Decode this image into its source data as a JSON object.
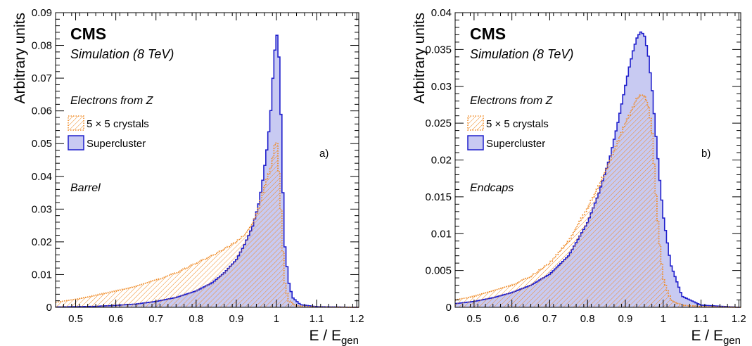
{
  "chart_data": [
    {
      "type": "area",
      "cms_label": "CMS",
      "subtitle": "Simulation (8 TeV)",
      "annotation": "Electrons from Z",
      "region": "Barrel",
      "panel_tag": "a)",
      "xlabel": "E / E",
      "xlabel_sub": "gen",
      "ylabel": "Arbitrary units",
      "xlim": [
        0.45,
        1.205
      ],
      "ylim": [
        0,
        0.09
      ],
      "xticks": [
        "0.5",
        "0.6",
        "0.7",
        "0.8",
        "0.9",
        "1",
        "1.1",
        "1.2"
      ],
      "yticks": [
        "0",
        "0.01",
        "0.02",
        "0.03",
        "0.04",
        "0.05",
        "0.06",
        "0.07",
        "0.08",
        "0.09"
      ],
      "legend_placement": "top-left",
      "series": [
        {
          "name": "5 × 5 crystals",
          "style": "hatched-dotted",
          "color": "#f08a24",
          "x": [
            0.45,
            0.5,
            0.55,
            0.6,
            0.65,
            0.7,
            0.75,
            0.8,
            0.84,
            0.87,
            0.9,
            0.92,
            0.94,
            0.955,
            0.965,
            0.975,
            0.985,
            0.99,
            0.995,
            1.0,
            1.005,
            1.01,
            1.015,
            1.02,
            1.03,
            1.05,
            1.1,
            1.2
          ],
          "values": [
            0.0015,
            0.0025,
            0.0037,
            0.005,
            0.0065,
            0.0083,
            0.0105,
            0.0135,
            0.0158,
            0.0178,
            0.02,
            0.022,
            0.0255,
            0.03,
            0.0345,
            0.039,
            0.042,
            0.045,
            0.049,
            0.052,
            0.044,
            0.033,
            0.02,
            0.008,
            0.002,
            0.0005,
            0.0001,
            0.0
          ]
        },
        {
          "name": "Supercluster",
          "style": "filled",
          "color": "#1f1fcc",
          "fill": "#c8caf2",
          "x": [
            0.45,
            0.5,
            0.55,
            0.6,
            0.65,
            0.7,
            0.75,
            0.8,
            0.84,
            0.87,
            0.9,
            0.92,
            0.94,
            0.955,
            0.965,
            0.975,
            0.985,
            0.99,
            0.995,
            1.0,
            1.005,
            1.01,
            1.015,
            1.02,
            1.03,
            1.04,
            1.06,
            1.1,
            1.2
          ],
          "values": [
            0.0001,
            0.0002,
            0.0003,
            0.0006,
            0.001,
            0.0018,
            0.003,
            0.005,
            0.0075,
            0.0105,
            0.0145,
            0.019,
            0.0245,
            0.031,
            0.038,
            0.047,
            0.058,
            0.068,
            0.077,
            0.084,
            0.08,
            0.065,
            0.04,
            0.02,
            0.008,
            0.003,
            0.0008,
            0.0002,
            0.0
          ]
        }
      ]
    },
    {
      "type": "area",
      "cms_label": "CMS",
      "subtitle": "Simulation (8 TeV)",
      "annotation": "Electrons from Z",
      "region": "Endcaps",
      "panel_tag": "b)",
      "xlabel": "E / E",
      "xlabel_sub": "gen",
      "ylabel": "Arbitrary units",
      "xlim": [
        0.45,
        1.205
      ],
      "ylim": [
        0,
        0.04
      ],
      "xticks": [
        "0.5",
        "0.6",
        "0.7",
        "0.8",
        "0.9",
        "1",
        "1.1",
        "1.2"
      ],
      "yticks": [
        "0",
        "0.005",
        "0.01",
        "0.015",
        "0.02",
        "0.025",
        "0.03",
        "0.035",
        "0.04"
      ],
      "legend_placement": "top-left",
      "series": [
        {
          "name": "5 × 5 crystals",
          "style": "hatched-dotted",
          "color": "#f08a24",
          "x": [
            0.45,
            0.5,
            0.55,
            0.6,
            0.65,
            0.7,
            0.75,
            0.8,
            0.83,
            0.86,
            0.88,
            0.9,
            0.91,
            0.92,
            0.93,
            0.94,
            0.95,
            0.96,
            0.97,
            0.98,
            0.99,
            1.0,
            1.02,
            1.05,
            1.1,
            1.2
          ],
          "values": [
            0.001,
            0.0015,
            0.0022,
            0.003,
            0.0042,
            0.006,
            0.009,
            0.0135,
            0.0165,
            0.02,
            0.0225,
            0.025,
            0.026,
            0.0272,
            0.0283,
            0.0288,
            0.0288,
            0.0275,
            0.0245,
            0.016,
            0.009,
            0.004,
            0.001,
            0.0003,
            0.0001,
            0.0
          ]
        },
        {
          "name": "Supercluster",
          "style": "filled",
          "color": "#1f1fcc",
          "fill": "#c8caf2",
          "x": [
            0.45,
            0.5,
            0.55,
            0.6,
            0.65,
            0.7,
            0.75,
            0.8,
            0.83,
            0.86,
            0.88,
            0.9,
            0.91,
            0.92,
            0.93,
            0.94,
            0.95,
            0.96,
            0.97,
            0.98,
            0.99,
            1.0,
            1.02,
            1.05,
            1.1,
            1.2
          ],
          "values": [
            0.0005,
            0.0008,
            0.0013,
            0.002,
            0.003,
            0.0045,
            0.007,
            0.0115,
            0.0155,
            0.0205,
            0.025,
            0.03,
            0.0325,
            0.0347,
            0.0365,
            0.0374,
            0.037,
            0.0345,
            0.03,
            0.0238,
            0.0178,
            0.0125,
            0.0058,
            0.0015,
            0.0003,
            0.0
          ]
        }
      ]
    }
  ]
}
